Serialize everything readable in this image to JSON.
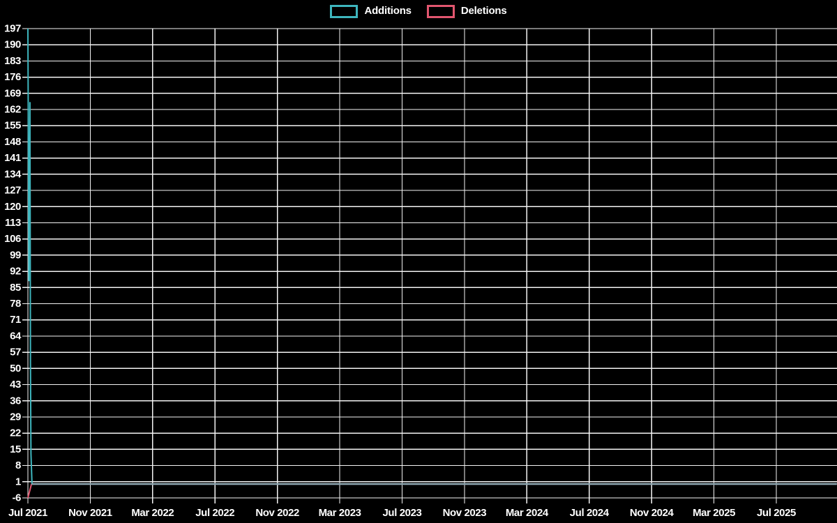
{
  "legend": {
    "items": [
      {
        "label": "Additions",
        "color": "#3EB6BE"
      },
      {
        "label": "Deletions",
        "color": "#E2566F"
      }
    ]
  },
  "chart_data": {
    "type": "line",
    "title": "",
    "xlabel": "",
    "ylabel": "",
    "background": "#000000",
    "grid": true,
    "grid_color": "#F4F4F4",
    "text_color": "#FFFFFF",
    "legend_position": "top-center",
    "ylim": [
      -6,
      197
    ],
    "y_tick_step": 7,
    "y_ticks": [
      197,
      190,
      183,
      176,
      169,
      162,
      155,
      148,
      141,
      134,
      127,
      120,
      113,
      106,
      99,
      92,
      85,
      78,
      71,
      64,
      57,
      50,
      43,
      36,
      29,
      22,
      15,
      8,
      1,
      -6
    ],
    "x_unit": "days since 2021-07-01",
    "x_tick_interval_months": 4,
    "x_tick_months": [
      0,
      4,
      8,
      12,
      16,
      20,
      24,
      28,
      32,
      36,
      40,
      44,
      48
    ],
    "x_tick_labels": [
      "Jul 2021",
      "Nov 2021",
      "Mar 2022",
      "Jul 2022",
      "Nov 2022",
      "Mar 2023",
      "Jul 2023",
      "Nov 2023",
      "Mar 2024",
      "Jul 2024",
      "Nov 2024",
      "Mar 2025",
      "Jul 2025"
    ],
    "x_end_day": 1579,
    "series": [
      {
        "name": "Deletions",
        "color": "#E2566F",
        "points": [
          [
            0,
            -6
          ],
          [
            7,
            0
          ],
          [
            1579,
            0
          ]
        ]
      },
      {
        "name": "Additions",
        "color": "#3EB6BE",
        "points": [
          [
            0,
            197
          ],
          [
            2,
            88
          ],
          [
            4,
            165
          ],
          [
            5,
            52
          ],
          [
            6,
            13
          ],
          [
            8,
            0
          ],
          [
            1579,
            0
          ]
        ]
      }
    ],
    "overlap_tail": {
      "from_day": 8,
      "to_day": 1579,
      "value": 0,
      "color": "#8FA8B2"
    }
  }
}
